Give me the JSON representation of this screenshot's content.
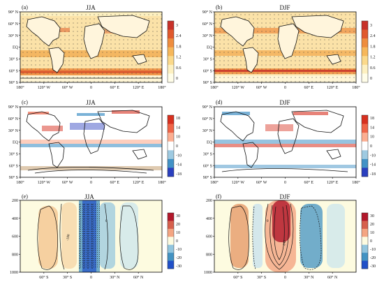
{
  "chart_data": [
    {
      "type": "heatmap",
      "panel": "(a)",
      "title": "JJA",
      "y_ticks": [
        "90° N",
        "60° N",
        "30° N",
        "EQ",
        "30° S",
        "60° S",
        "90° S"
      ],
      "x_ticks": [
        "180°",
        "120° W",
        "60° W",
        "0",
        "60° E",
        "120° E",
        "180°"
      ],
      "colorbar_ticks": [
        "0",
        "0.6",
        "1.2",
        "1.8",
        "2.4",
        "3"
      ],
      "colors": [
        "#fffde8",
        "#fdf0c0",
        "#fbd98a",
        "#f6b75a",
        "#ee8d3e",
        "#e0592c",
        "#c8322a"
      ]
    },
    {
      "type": "heatmap",
      "panel": "(b)",
      "title": "DJF",
      "y_ticks": [
        "90° N",
        "60° N",
        "30° N",
        "EQ",
        "30° S",
        "60° S",
        "90° S"
      ],
      "x_ticks": [
        "180°",
        "120° W",
        "60° W",
        "0",
        "60° E",
        "120° E",
        "180°"
      ],
      "colorbar_ticks": [
        "0",
        "0.6",
        "1.2",
        "1.8",
        "2.4",
        "3"
      ],
      "colors": [
        "#fffde8",
        "#fdf0c0",
        "#fbd98a",
        "#f6b75a",
        "#ee8d3e",
        "#e0592c",
        "#c8322a"
      ]
    },
    {
      "type": "heatmap",
      "panel": "(c)",
      "title": "JJA",
      "y_ticks": [
        "90° N",
        "60° N",
        "30° N",
        "EQ",
        "30° S",
        "60° S",
        "90° S"
      ],
      "x_ticks": [
        "180°",
        "120° W",
        "60° W",
        "0",
        "60° E",
        "120° E",
        "180°"
      ],
      "colorbar_ticks": [
        "18",
        "14",
        "10",
        "0",
        "-10",
        "-14",
        "-18"
      ],
      "colors": [
        "#d7301f",
        "#ef6548",
        "#fcae91",
        "#ffffff",
        "#9ecae1",
        "#4292c6",
        "#2a3fbf"
      ]
    },
    {
      "type": "heatmap",
      "panel": "(d)",
      "title": "DJF",
      "y_ticks": [
        "90° N",
        "60° N",
        "30° N",
        "EQ",
        "30° S",
        "60° S",
        "90° S"
      ],
      "x_ticks": [
        "180°",
        "120° W",
        "60° W",
        "0",
        "60° E",
        "120° E",
        "180°"
      ],
      "colorbar_ticks": [
        "18",
        "14",
        "10",
        "0",
        "-10",
        "-14",
        "-18"
      ],
      "colors": [
        "#d7301f",
        "#ef6548",
        "#fcae91",
        "#ffffff",
        "#9ecae1",
        "#4292c6",
        "#2a3fbf"
      ]
    },
    {
      "type": "heatmap",
      "panel": "(e)",
      "title": "JJA",
      "y_ticks": [
        "200",
        "400",
        "600",
        "800",
        "1000"
      ],
      "x_ticks": [
        "60° S",
        "30° S",
        "0",
        "30° N",
        "60° N"
      ],
      "colorbar_ticks": [
        "30",
        "20",
        "10",
        "0",
        "-10",
        "-20",
        "-30"
      ],
      "contour_labels": [
        "-180",
        "0"
      ],
      "colors": [
        "#b2182b",
        "#d6604d",
        "#f4a582",
        "#fdfbe0",
        "#92c5de",
        "#4393c3",
        "#2150c8"
      ]
    },
    {
      "type": "heatmap",
      "panel": "(f)",
      "title": "DJF",
      "y_ticks": [
        "200",
        "400",
        "600",
        "800",
        "1000"
      ],
      "x_ticks": [
        "60° S",
        "30° S",
        "0",
        "30° N",
        "60° N"
      ],
      "colorbar_ticks": [
        "30",
        "20",
        "10",
        "0",
        "-10",
        "-20",
        "-30"
      ],
      "contour_labels": [
        "240",
        "0"
      ],
      "colors": [
        "#b2182b",
        "#d6604d",
        "#f4a582",
        "#fdfbe0",
        "#92c5de",
        "#4393c3",
        "#2150c8"
      ]
    }
  ]
}
